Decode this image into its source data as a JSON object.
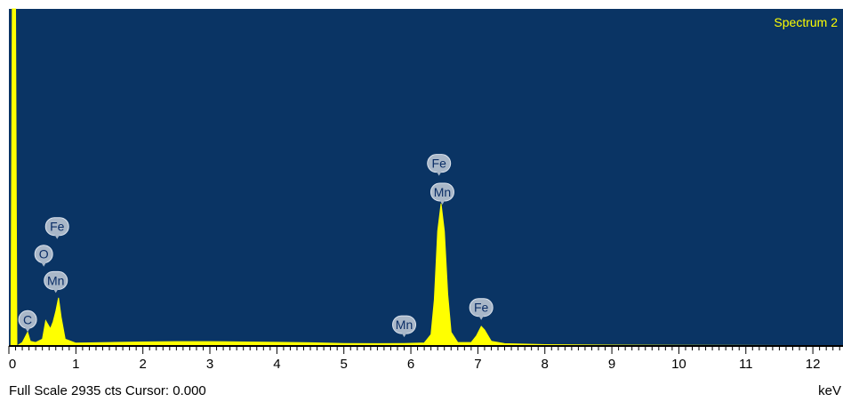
{
  "colors": {
    "plot_background": "#0a3464",
    "spectrum_fill": "#ffff00",
    "label_bubble": "#a9b7c8",
    "title_text": "#ffff00",
    "axis": "#000000"
  },
  "footer": {
    "status": "Full Scale 2935 cts Cursor: 0.000",
    "unit": "keV"
  },
  "chart_data": {
    "type": "area",
    "title": "Spectrum 2",
    "xlabel": "keV",
    "ylabel": "",
    "xlim": [
      0,
      12.45
    ],
    "ylim": [
      0,
      2935
    ],
    "x_ticks": [
      "0",
      "1",
      "2",
      "3",
      "4",
      "5",
      "6",
      "7",
      "8",
      "9",
      "10",
      "11",
      "12"
    ],
    "series": [
      {
        "values": [
          [
            0.0,
            0
          ],
          [
            0.03,
            0
          ],
          [
            0.05,
            2935
          ],
          [
            0.1,
            2935
          ],
          [
            0.12,
            0
          ],
          [
            0.2,
            30
          ],
          [
            0.28,
            120
          ],
          [
            0.32,
            40
          ],
          [
            0.4,
            30
          ],
          [
            0.5,
            60
          ],
          [
            0.55,
            220
          ],
          [
            0.62,
            150
          ],
          [
            0.66,
            210
          ],
          [
            0.7,
            300
          ],
          [
            0.74,
            420
          ],
          [
            0.78,
            250
          ],
          [
            0.84,
            60
          ],
          [
            1.0,
            25
          ],
          [
            1.5,
            30
          ],
          [
            2.0,
            35
          ],
          [
            2.5,
            38
          ],
          [
            3.0,
            38
          ],
          [
            3.5,
            35
          ],
          [
            4.0,
            32
          ],
          [
            4.5,
            28
          ],
          [
            5.0,
            22
          ],
          [
            5.5,
            20
          ],
          [
            5.9,
            22
          ],
          [
            6.2,
            26
          ],
          [
            6.3,
            100
          ],
          [
            6.35,
            400
          ],
          [
            6.4,
            1000
          ],
          [
            6.45,
            1240
          ],
          [
            6.5,
            1000
          ],
          [
            6.55,
            450
          ],
          [
            6.6,
            120
          ],
          [
            6.7,
            30
          ],
          [
            6.9,
            30
          ],
          [
            6.98,
            90
          ],
          [
            7.05,
            170
          ],
          [
            7.1,
            140
          ],
          [
            7.2,
            40
          ],
          [
            7.4,
            20
          ],
          [
            8.0,
            12
          ],
          [
            9.0,
            8
          ],
          [
            10.0,
            6
          ],
          [
            11.0,
            5
          ],
          [
            12.45,
            4
          ]
        ]
      }
    ],
    "annotations": [
      {
        "text": "Fe",
        "x": 0.72,
        "y": 1040
      },
      {
        "text": "O",
        "x": 0.52,
        "y": 800
      },
      {
        "text": "Mn",
        "x": 0.7,
        "y": 570
      },
      {
        "text": "C",
        "x": 0.28,
        "y": 230
      },
      {
        "text": "Mn",
        "x": 5.9,
        "y": 185
      },
      {
        "text": "Fe",
        "x": 6.42,
        "y": 1590
      },
      {
        "text": "Mn",
        "x": 6.47,
        "y": 1340
      },
      {
        "text": "Fe",
        "x": 7.05,
        "y": 335
      }
    ]
  }
}
